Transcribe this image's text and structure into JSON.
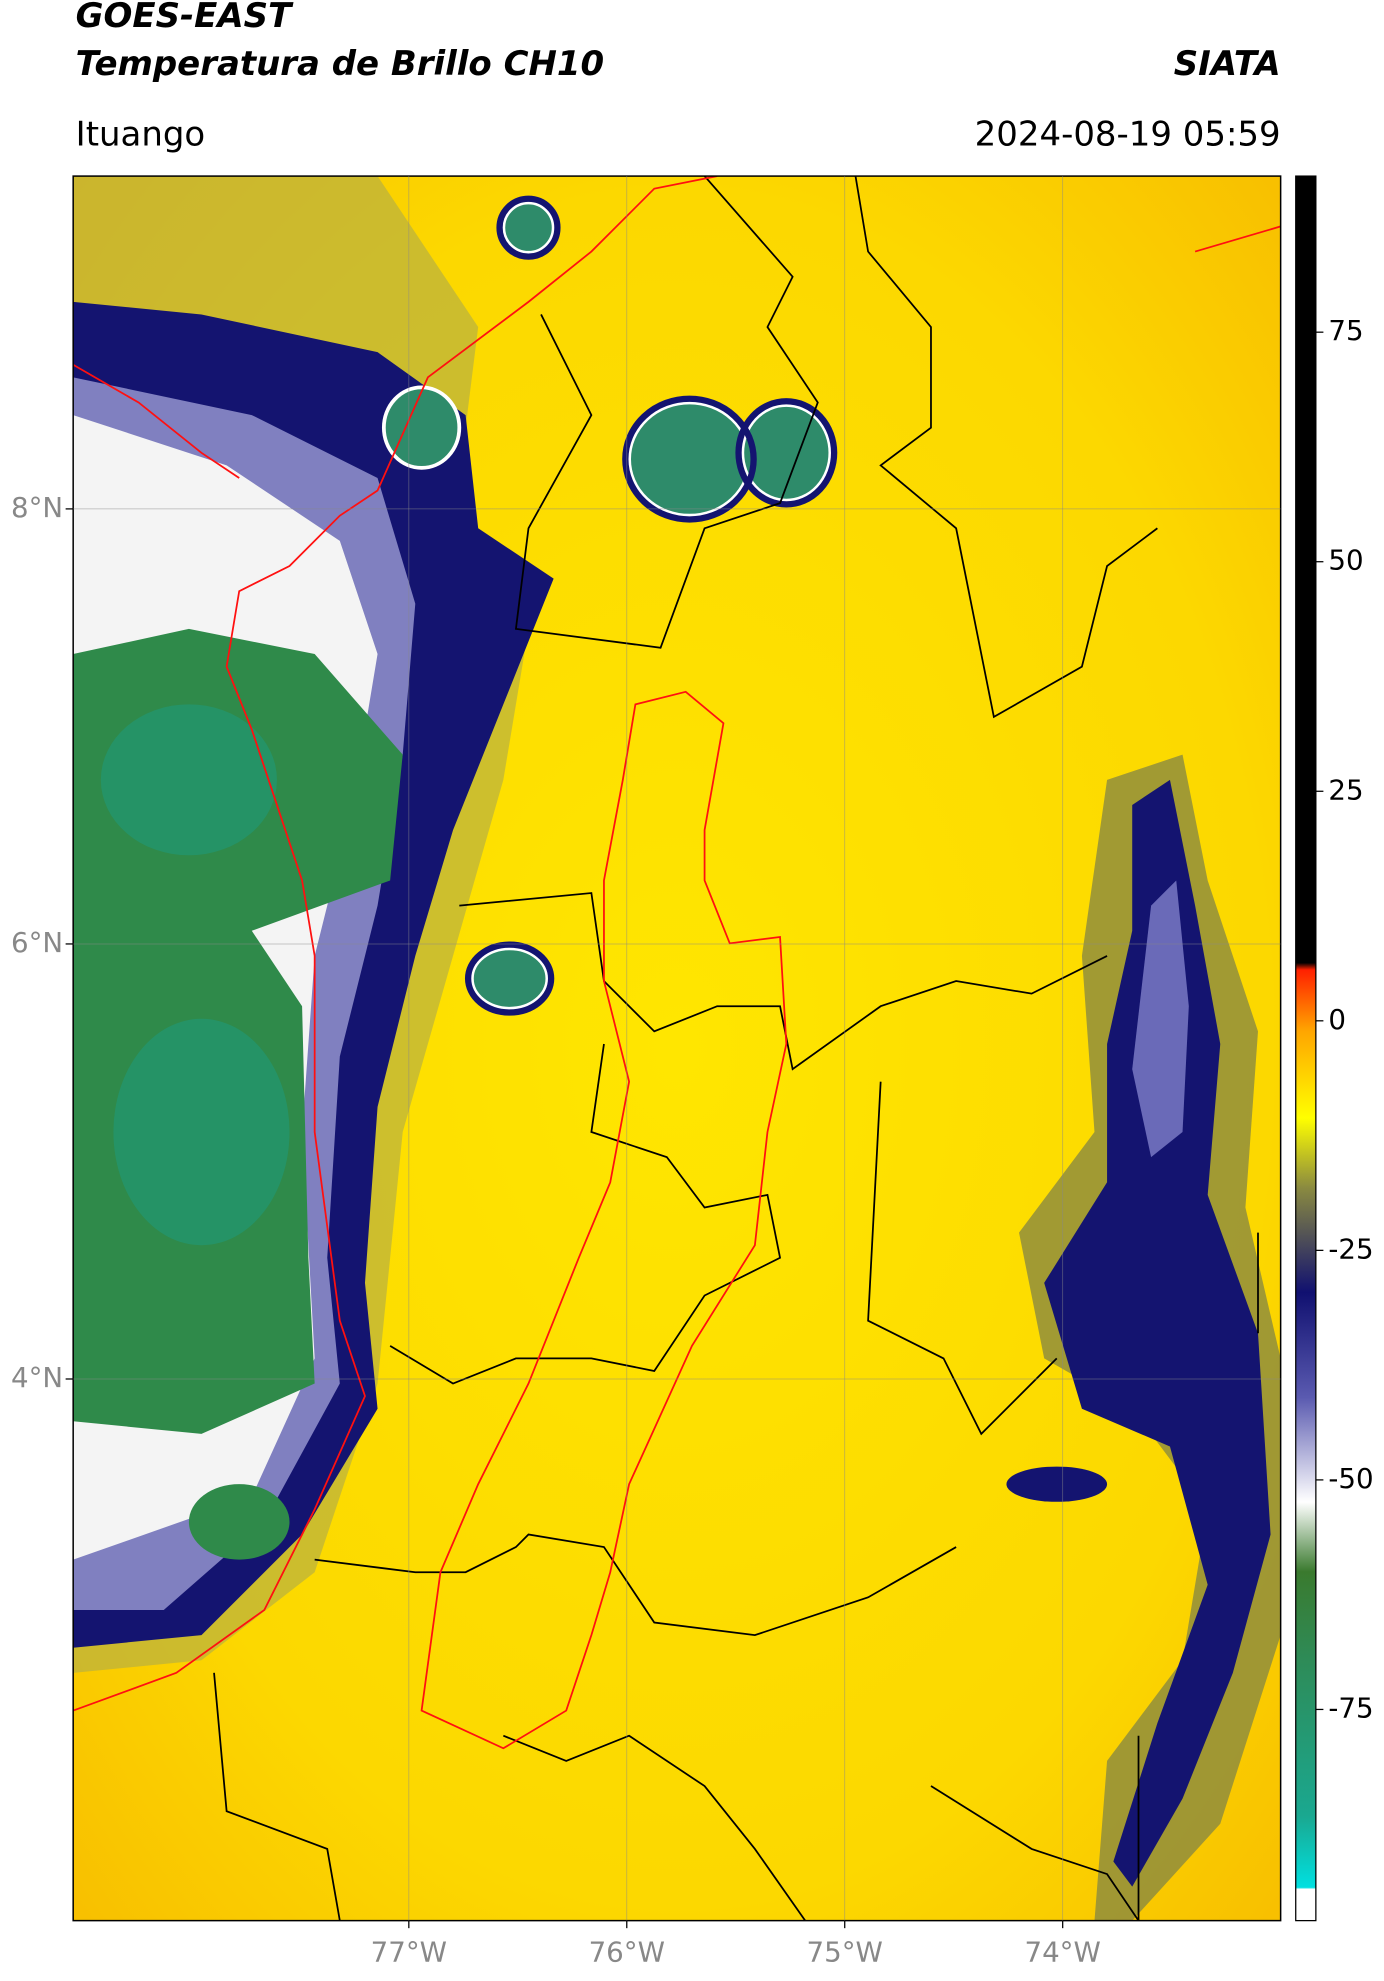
{
  "header": {
    "title_line1": "GOES-EAST",
    "title_line2": "Temperatura de Brillo CH10",
    "source": "SIATA",
    "region": "Ituango",
    "datetime": "2024-08-19 05:59"
  },
  "map": {
    "lon_range": [
      -78.54,
      -73.0
    ],
    "lat_range": [
      1.51,
      9.53
    ],
    "lon_ticks": [
      {
        "value": -77,
        "label": "77°W"
      },
      {
        "value": -76,
        "label": "76°W"
      },
      {
        "value": -75,
        "label": "75°W"
      },
      {
        "value": -74,
        "label": "74°W"
      }
    ],
    "lat_ticks": [
      {
        "value": 8,
        "label": "8°N"
      },
      {
        "value": 6,
        "label": "6°N"
      },
      {
        "value": 4,
        "label": "4°N"
      }
    ]
  },
  "colorbar": {
    "range": [
      -98,
      92
    ],
    "ticks": [
      75,
      50,
      25,
      0,
      -25,
      -50,
      -75
    ]
  }
}
